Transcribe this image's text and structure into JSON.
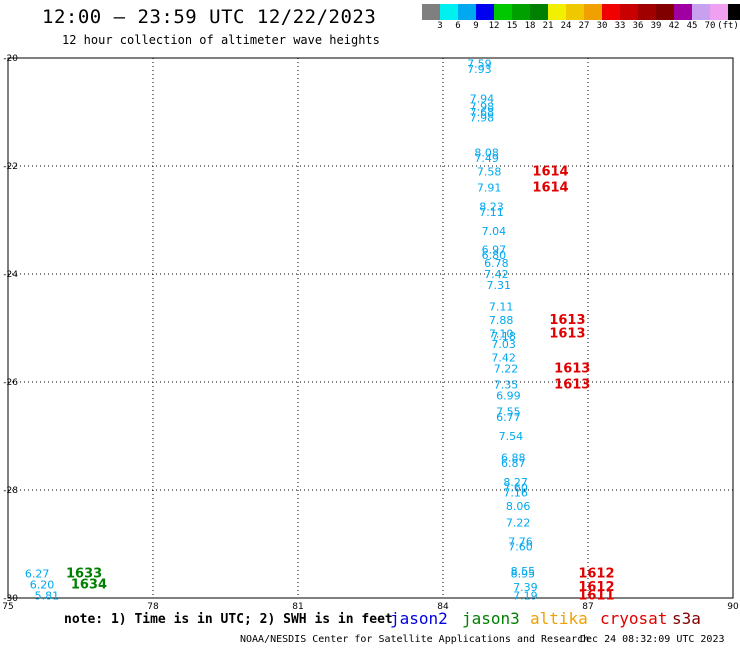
{
  "header": {
    "title": "12:00 – 23:59 UTC 12/22/2023",
    "subtitle": "12 hour collection of altimeter wave heights"
  },
  "colorbar": {
    "colors": [
      "#7f7f7f",
      "#00f0f0",
      "#00a8f0",
      "#0000f0",
      "#00c800",
      "#00a000",
      "#008000",
      "#f0f000",
      "#f0c800",
      "#f0a000",
      "#f00000",
      "#c80000",
      "#a00000",
      "#800000",
      "#a000a0",
      "#c8a0f0",
      "#f0a0f0",
      "#000000"
    ],
    "labels": [
      "3",
      "6",
      "9",
      "12",
      "15",
      "18",
      "21",
      "24",
      "27",
      "30",
      "33",
      "36",
      "39",
      "42",
      "45",
      "70",
      "(ft)"
    ]
  },
  "chart_data": {
    "type": "scatter",
    "xlim": [
      75,
      90
    ],
    "ylim": [
      -30,
      -20
    ],
    "x_ticks": [
      "75",
      "78",
      "81",
      "84",
      "87",
      "90"
    ],
    "y_ticks": [
      "-20",
      "-22",
      "-24",
      "-26",
      "-28",
      "-30"
    ],
    "grid": true,
    "series": [
      {
        "name": "altika",
        "color": "#00a8f0",
        "points": [
          {
            "x": 84.5,
            "y": -20.1,
            "label": "7.59"
          },
          {
            "x": 84.5,
            "y": -20.2,
            "label": "7.93"
          },
          {
            "x": 84.55,
            "y": -20.75,
            "label": "7.94"
          },
          {
            "x": 84.55,
            "y": -20.9,
            "label": "7.98"
          },
          {
            "x": 84.55,
            "y": -21.0,
            "label": "7.68"
          },
          {
            "x": 84.55,
            "y": -21.1,
            "label": "7.98"
          },
          {
            "x": 84.65,
            "y": -21.75,
            "label": "8.08"
          },
          {
            "x": 84.65,
            "y": -21.85,
            "label": "7.49"
          },
          {
            "x": 84.7,
            "y": -22.1,
            "label": "7.58"
          },
          {
            "x": 84.7,
            "y": -22.4,
            "label": "7.91"
          },
          {
            "x": 84.75,
            "y": -22.75,
            "label": "8.23"
          },
          {
            "x": 84.75,
            "y": -22.85,
            "label": "7.11"
          },
          {
            "x": 84.8,
            "y": -23.2,
            "label": "7.04"
          },
          {
            "x": 84.8,
            "y": -23.55,
            "label": "6.97"
          },
          {
            "x": 84.8,
            "y": -23.65,
            "label": "6.80"
          },
          {
            "x": 84.85,
            "y": -23.8,
            "label": "6.78"
          },
          {
            "x": 84.85,
            "y": -24.0,
            "label": "7.42"
          },
          {
            "x": 84.9,
            "y": -24.2,
            "label": "7.31"
          },
          {
            "x": 84.95,
            "y": -24.6,
            "label": "7.11"
          },
          {
            "x": 84.95,
            "y": -24.85,
            "label": "7.88"
          },
          {
            "x": 84.95,
            "y": -25.1,
            "label": "7.10"
          },
          {
            "x": 85.0,
            "y": -25.15,
            "label": "7.18"
          },
          {
            "x": 85.0,
            "y": -25.3,
            "label": "7.03"
          },
          {
            "x": 85.0,
            "y": -25.55,
            "label": "7.42"
          },
          {
            "x": 85.05,
            "y": -25.75,
            "label": "7.22"
          },
          {
            "x": 85.05,
            "y": -26.05,
            "label": "7.35"
          },
          {
            "x": 85.1,
            "y": -26.25,
            "label": "6.99"
          },
          {
            "x": 85.1,
            "y": -26.55,
            "label": "7.55"
          },
          {
            "x": 85.1,
            "y": -26.65,
            "label": "6.77"
          },
          {
            "x": 85.15,
            "y": -27.0,
            "label": "7.54"
          },
          {
            "x": 85.2,
            "y": -27.4,
            "label": "6.88"
          },
          {
            "x": 85.2,
            "y": -27.5,
            "label": "6.87"
          },
          {
            "x": 85.25,
            "y": -27.85,
            "label": "8.27"
          },
          {
            "x": 85.25,
            "y": -27.95,
            "label": "7.60"
          },
          {
            "x": 85.25,
            "y": -28.05,
            "label": "7.16"
          },
          {
            "x": 85.3,
            "y": -28.3,
            "label": "8.06"
          },
          {
            "x": 85.3,
            "y": -28.6,
            "label": "7.22"
          },
          {
            "x": 85.35,
            "y": -28.95,
            "label": "7.76"
          },
          {
            "x": 85.35,
            "y": -29.05,
            "label": "7.60"
          },
          {
            "x": 85.4,
            "y": -29.5,
            "label": "8.55"
          },
          {
            "x": 85.4,
            "y": -29.55,
            "label": "8.95"
          },
          {
            "x": 85.45,
            "y": -29.8,
            "label": "7.39"
          },
          {
            "x": 85.45,
            "y": -29.95,
            "label": "7.19"
          },
          {
            "x": 75.35,
            "y": -29.55,
            "label": "6.27"
          },
          {
            "x": 75.45,
            "y": -29.75,
            "label": "6.20"
          },
          {
            "x": 75.55,
            "y": -29.95,
            "label": "5.81"
          }
        ]
      },
      {
        "name": "cryosat",
        "color": "#e00000",
        "points": [
          {
            "x": 85.85,
            "y": -22.1,
            "label": "1614"
          },
          {
            "x": 85.85,
            "y": -22.4,
            "label": "1614"
          },
          {
            "x": 86.2,
            "y": -24.85,
            "label": "1613"
          },
          {
            "x": 86.2,
            "y": -25.1,
            "label": "1613"
          },
          {
            "x": 86.3,
            "y": -25.75,
            "label": "1613"
          },
          {
            "x": 86.3,
            "y": -26.05,
            "label": "1613"
          },
          {
            "x": 86.8,
            "y": -29.55,
            "label": "1612"
          },
          {
            "x": 86.8,
            "y": -29.8,
            "label": "1612"
          },
          {
            "x": 86.8,
            "y": -29.95,
            "label": "1611"
          }
        ]
      },
      {
        "name": "jason3",
        "color": "#008000",
        "points": [
          {
            "x": 76.2,
            "y": -29.55,
            "label": "1633"
          },
          {
            "x": 76.3,
            "y": -29.75,
            "label": "1634"
          }
        ]
      }
    ]
  },
  "footer": {
    "note": "note: 1) Time is in UTC; 2) SWH is in feet",
    "satellites": [
      {
        "name": "jason2",
        "color": "#0000e0"
      },
      {
        "name": "jason3",
        "color": "#008000"
      },
      {
        "name": "altika",
        "color": "#f0a000"
      },
      {
        "name": "cryosat",
        "color": "#e00000"
      },
      {
        "name": "s3a",
        "color": "#800000"
      }
    ],
    "credit": "NOAA/NESDIS Center for Satellite Applications and Research",
    "timestamp": "Dec 24 08:32:09 UTC 2023"
  }
}
